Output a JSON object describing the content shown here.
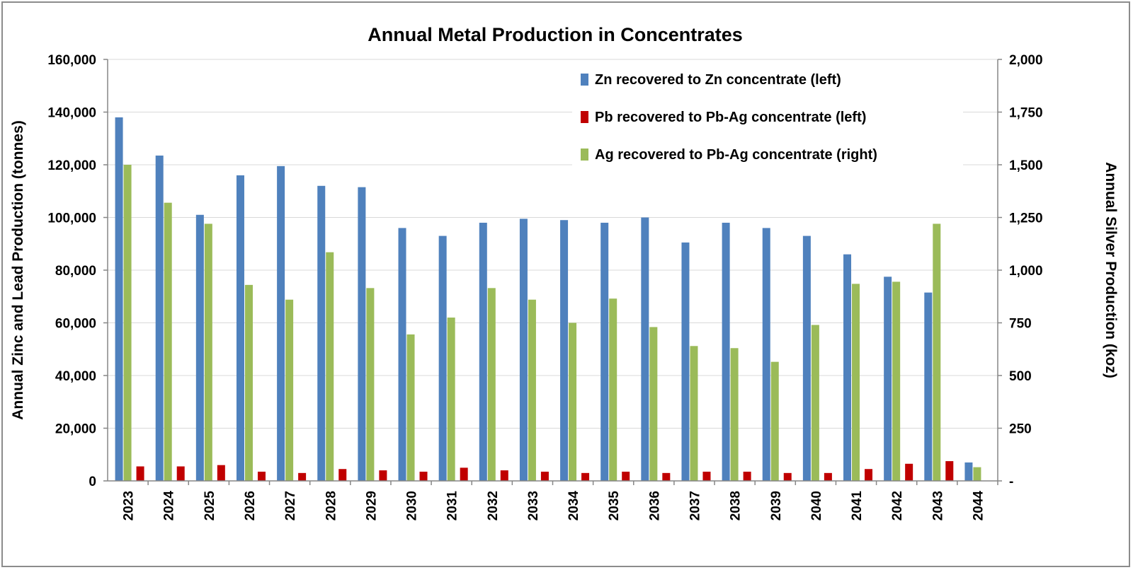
{
  "chart_data": {
    "type": "bar",
    "title": "Annual Metal Production in Concentrates",
    "ylabel": "Annual Zinc and Lead Production (tonnes)",
    "y2label": "Annual Silver Production (koz)",
    "xlabel": "",
    "ylim": [
      0,
      160000
    ],
    "y2lim": [
      0,
      2000
    ],
    "yticks": [
      "0",
      "20,000",
      "40,000",
      "60,000",
      "80,000",
      "100,000",
      "120,000",
      "140,000",
      "160,000"
    ],
    "y2ticks": [
      "-",
      "250",
      "500",
      "750",
      "1,000",
      "1,250",
      "1,500",
      "1,750",
      "2,000"
    ],
    "grid": true,
    "legend_position": "top-right",
    "categories": [
      "2023",
      "2024",
      "2025",
      "2026",
      "2027",
      "2028",
      "2029",
      "2030",
      "2031",
      "2032",
      "2033",
      "2034",
      "2035",
      "2036",
      "2037",
      "2038",
      "2039",
      "2040",
      "2041",
      "2042",
      "2043",
      "2044"
    ],
    "series": [
      {
        "name": "Zn recovered to Zn concentrate (left)",
        "axis": "left",
        "color": "#4f81bd",
        "values": [
          138000,
          123500,
          101000,
          116000,
          119500,
          112000,
          111500,
          96000,
          93000,
          98000,
          99500,
          99000,
          98000,
          100000,
          90500,
          98000,
          96000,
          93000,
          86000,
          77500,
          71500,
          7000
        ]
      },
      {
        "name": "Pb recovered to Pb-Ag concentrate (left)",
        "axis": "left",
        "color": "#c00000",
        "values": [
          5500,
          5500,
          6000,
          3500,
          3000,
          4500,
          4000,
          3500,
          5000,
          4000,
          3500,
          3000,
          3500,
          3000,
          3500,
          3500,
          3000,
          3000,
          4500,
          6500,
          7500,
          0
        ]
      },
      {
        "name": "Ag recovered to Pb-Ag concentrate (right)",
        "axis": "right",
        "color": "#9bbb59",
        "values": [
          1500,
          1320,
          1220,
          930,
          860,
          1085,
          915,
          695,
          775,
          915,
          860,
          750,
          865,
          730,
          640,
          630,
          565,
          740,
          935,
          945,
          1220,
          65
        ]
      }
    ]
  }
}
